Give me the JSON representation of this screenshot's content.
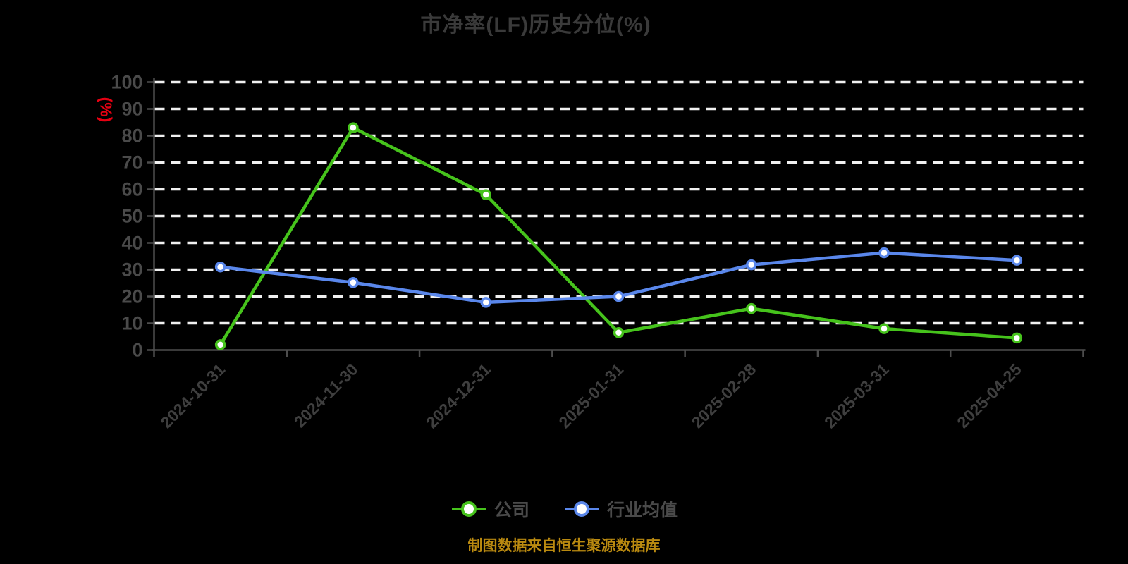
{
  "chart_data": {
    "type": "line",
    "title": "市净率(LF)历史分位(%)",
    "ylabel": "(%)",
    "xlabel": "",
    "ylim": [
      0,
      100
    ],
    "y_tick_interval": 10,
    "grid": "horizontal dashed lines on",
    "legend_position": "bottom",
    "categories": [
      "2024-10-31",
      "2024-11-30",
      "2024-12-31",
      "2025-01-31",
      "2025-02-28",
      "2025-03-31",
      "2025-04-25"
    ],
    "series": [
      {
        "id": "company",
        "name": "公司",
        "color": "#46c31c",
        "values": [
          2,
          83,
          58,
          6.5,
          15.5,
          8,
          4.5
        ]
      },
      {
        "id": "industry-average",
        "name": "行业均值",
        "color": "#5a87eb",
        "values": [
          31,
          25.2,
          17.8,
          20,
          31.8,
          36.3,
          33.5
        ]
      }
    ],
    "marker": "white circle with colored ring"
  },
  "caption": {
    "text": "制图数据来自恒生聚源数据库",
    "color": "#ba8a10"
  },
  "style": {
    "background": "#000000",
    "title_color": "#3a3a3a",
    "grid_color": "#f0f0f0",
    "axis_color": "#4d4d4d",
    "tick_label_color": "#4a4a4a",
    "x_label_color": "#3f3f3f",
    "legend_text_color": "#4a4a4a",
    "y_axis_name_color": "#e60012"
  }
}
